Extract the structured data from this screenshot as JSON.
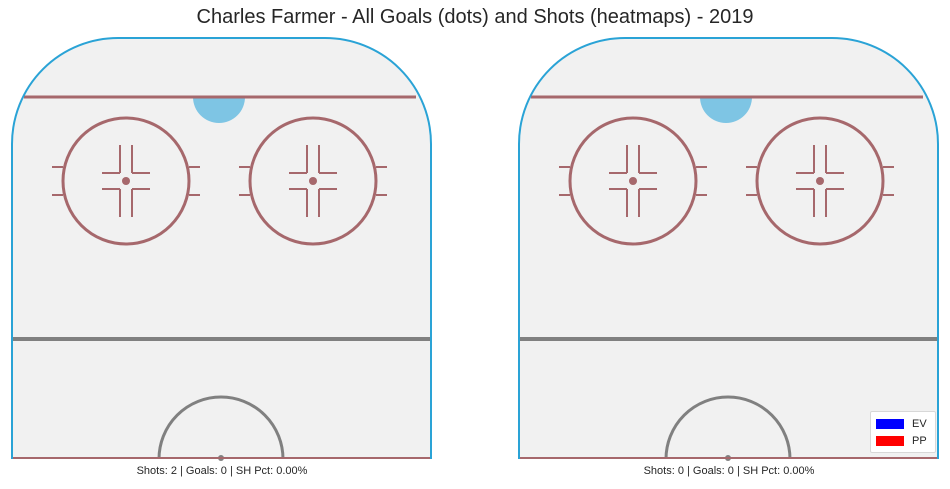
{
  "title": "Charles Farmer - All Goals (dots) and Shots (heatmaps) - 2019",
  "panels": [
    {
      "caption": "Shots: 2 | Goals: 0 | SH Pct: 0.00%"
    },
    {
      "caption": "Shots: 0 | Goals: 0 | SH Pct: 0.00%"
    }
  ],
  "legend": [
    {
      "label": "EV",
      "color": "#0000ff"
    },
    {
      "label": "PP",
      "color": "#ff0000"
    }
  ],
  "colors": {
    "ice": "#f1f1f1",
    "boards": "#2aa3d6",
    "red_lines": "#a6686c",
    "blue_line": "#808080",
    "crease": "#7ec5e4"
  },
  "chart_data": [
    {
      "type": "heatmap",
      "strength_groups": [
        "EV",
        "PP"
      ],
      "shots": 2,
      "goals": 0,
      "sh_pct": "0.00%",
      "goal_points": []
    },
    {
      "type": "heatmap",
      "strength_groups": [
        "EV",
        "PP"
      ],
      "shots": 0,
      "goals": 0,
      "sh_pct": "0.00%",
      "goal_points": []
    }
  ]
}
